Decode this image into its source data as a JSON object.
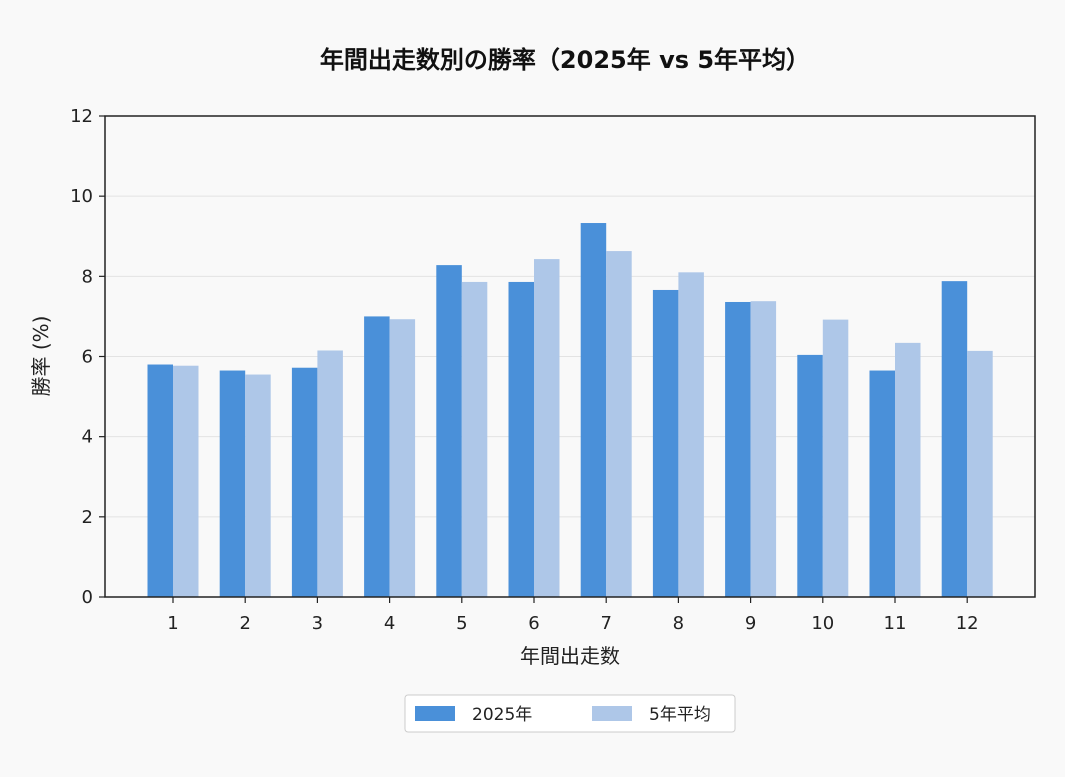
{
  "chart_data": {
    "type": "bar",
    "title": "年間出走数別の勝率（2025年 vs 5年平均）",
    "xlabel": "年間出走数",
    "ylabel": "勝率 (%)",
    "categories": [
      "1",
      "2",
      "3",
      "4",
      "5",
      "6",
      "7",
      "8",
      "9",
      "10",
      "11",
      "12"
    ],
    "series": [
      {
        "name": "2025年",
        "color": "#4a90d9",
        "values": [
          5.8,
          5.65,
          5.72,
          7.0,
          8.28,
          7.86,
          9.33,
          7.66,
          7.36,
          6.04,
          5.65,
          7.88
        ]
      },
      {
        "name": "5年平均",
        "color": "#aec7e8",
        "values": [
          5.77,
          5.55,
          6.15,
          6.93,
          7.86,
          8.43,
          8.63,
          8.1,
          7.38,
          6.92,
          6.34,
          6.14
        ]
      }
    ],
    "ylim": [
      0,
      12
    ],
    "yticks": [
      0,
      2,
      4,
      6,
      8,
      10,
      12
    ],
    "grid": "horizontal",
    "legend": "bottom-center"
  }
}
